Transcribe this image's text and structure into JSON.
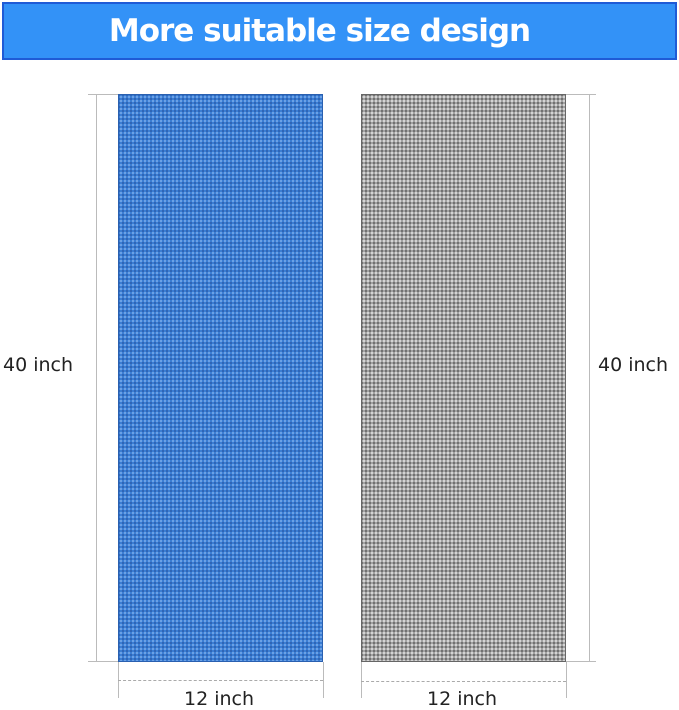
{
  "banner": {
    "title": "More suitable size design",
    "color": "#3392f7"
  },
  "towels": [
    {
      "color_name": "blue",
      "color": "#3a7dd4",
      "height_label": "40 inch",
      "width_label": "12 inch"
    },
    {
      "color_name": "gray",
      "color": "#a2a2a2",
      "height_label": "40 inch",
      "width_label": "12 inch"
    }
  ]
}
